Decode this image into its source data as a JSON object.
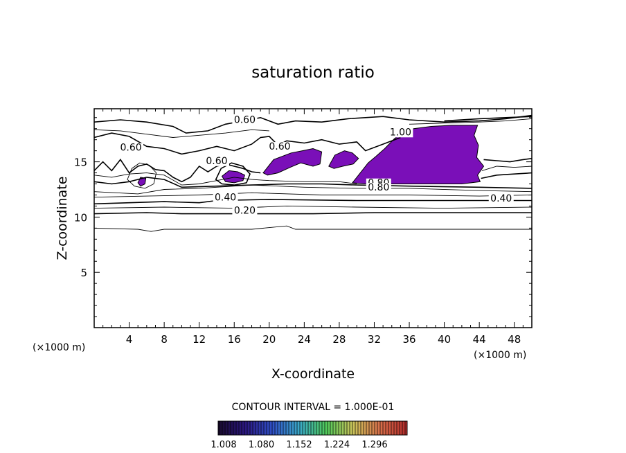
{
  "chart_data": {
    "type": "heatmap",
    "title": "saturation ratio",
    "xlabel": "X-coordinate",
    "ylabel": "Z-coordinate",
    "x_unit": "(×1000 m)",
    "y_unit": "(×1000 m)",
    "xlim": [
      0,
      50
    ],
    "ylim": [
      0,
      19.8
    ],
    "x_ticks": [
      4,
      8,
      12,
      16,
      20,
      24,
      28,
      32,
      36,
      40,
      44,
      48
    ],
    "y_ticks": [
      5,
      10,
      15
    ],
    "contour_interval_label": "CONTOUR INTERVAL = 1.000E-01",
    "colorbar_ticks": [
      "1.008",
      "1.080",
      "1.152",
      "1.224",
      "1.296"
    ],
    "colorbar_colors": [
      "#1a0a2e",
      "#2b1780",
      "#3050c8",
      "#3aa9c8",
      "#4fc95a",
      "#cbc35a",
      "#d96f4a",
      "#b32a2a"
    ],
    "fill_color": "#7a0fb8",
    "contour_labels": [
      {
        "text": "0.60",
        "x": 17.2,
        "y": 18.5
      },
      {
        "text": "0.60",
        "x": 4.2,
        "y": 16.0
      },
      {
        "text": "0.60",
        "x": 14.0,
        "y": 14.8
      },
      {
        "text": "0.60",
        "x": 21.2,
        "y": 16.1
      },
      {
        "text": "1.00",
        "x": 35.0,
        "y": 17.4
      },
      {
        "text": "0.80",
        "x": 32.5,
        "y": 12.8
      },
      {
        "text": "0.80",
        "x": 32.5,
        "y": 12.4
      },
      {
        "text": "0.40",
        "x": 15.0,
        "y": 11.5
      },
      {
        "text": "0.40",
        "x": 46.5,
        "y": 11.4
      },
      {
        "text": "0.20",
        "x": 17.2,
        "y": 10.3
      }
    ],
    "supersaturated_regions": [
      {
        "points": [
          [
            19.3,
            14.0
          ],
          [
            20.5,
            15.2
          ],
          [
            22.5,
            15.8
          ],
          [
            23.8,
            16.0
          ],
          [
            25.0,
            16.2
          ],
          [
            26.0,
            15.9
          ],
          [
            25.8,
            14.8
          ],
          [
            25.0,
            14.6
          ],
          [
            23.6,
            14.9
          ],
          [
            22.4,
            14.5
          ],
          [
            21.0,
            14.0
          ],
          [
            19.8,
            13.8
          ]
        ]
      },
      {
        "points": [
          [
            26.8,
            14.6
          ],
          [
            27.5,
            15.6
          ],
          [
            28.6,
            16.0
          ],
          [
            29.5,
            15.8
          ],
          [
            30.2,
            15.3
          ],
          [
            29.6,
            14.8
          ],
          [
            28.4,
            14.6
          ],
          [
            27.4,
            14.4
          ]
        ]
      },
      {
        "points": [
          [
            29.5,
            13.1
          ],
          [
            30.4,
            14.0
          ],
          [
            31.3,
            14.9
          ],
          [
            32.2,
            15.5
          ],
          [
            33.2,
            16.2
          ],
          [
            34.3,
            17.1
          ],
          [
            35.2,
            17.6
          ],
          [
            36.5,
            18.0
          ],
          [
            38.5,
            18.2
          ],
          [
            40.8,
            18.3
          ],
          [
            43.8,
            18.3
          ],
          [
            43.4,
            17.4
          ],
          [
            43.9,
            16.5
          ],
          [
            43.7,
            15.4
          ],
          [
            44.5,
            14.6
          ],
          [
            43.8,
            13.8
          ],
          [
            44.1,
            13.2
          ],
          [
            42.0,
            13.0
          ],
          [
            39.0,
            13.0
          ],
          [
            36.0,
            13.0
          ],
          [
            33.0,
            13.0
          ],
          [
            31.0,
            13.0
          ]
        ]
      },
      {
        "points": [
          [
            14.6,
            13.7
          ],
          [
            15.4,
            14.2
          ],
          [
            16.4,
            14.1
          ],
          [
            17.2,
            13.8
          ],
          [
            17.0,
            13.3
          ],
          [
            16.0,
            13.1
          ],
          [
            15.0,
            13.2
          ]
        ]
      },
      {
        "points": [
          [
            5.0,
            13.1
          ],
          [
            5.3,
            13.6
          ],
          [
            5.9,
            13.5
          ],
          [
            5.8,
            13.0
          ],
          [
            5.3,
            12.8
          ]
        ]
      }
    ],
    "contour_lines": [
      {
        "level": 0.1,
        "points": [
          [
            0,
            9.0
          ],
          [
            5,
            8.9
          ],
          [
            6.5,
            8.7
          ],
          [
            8,
            8.9
          ],
          [
            12,
            8.9
          ],
          [
            18,
            8.9
          ],
          [
            22,
            9.2
          ],
          [
            23,
            8.9
          ],
          [
            30,
            8.9
          ],
          [
            40,
            8.9
          ],
          [
            50,
            8.9
          ]
        ]
      },
      {
        "level": 0.2,
        "points": [
          [
            0,
            10.3
          ],
          [
            6,
            10.4
          ],
          [
            10,
            10.3
          ],
          [
            16,
            10.3
          ],
          [
            25,
            10.3
          ],
          [
            32,
            10.4
          ],
          [
            40,
            10.4
          ],
          [
            50,
            10.4
          ]
        ]
      },
      {
        "level": 0.3,
        "points": [
          [
            0,
            10.8
          ],
          [
            8,
            10.9
          ],
          [
            16,
            10.8
          ],
          [
            22,
            11.0
          ],
          [
            30,
            10.9
          ],
          [
            40,
            10.8
          ],
          [
            50,
            10.9
          ]
        ]
      },
      {
        "level": 0.4,
        "points": [
          [
            0,
            11.2
          ],
          [
            8,
            11.4
          ],
          [
            12,
            11.3
          ],
          [
            14,
            11.5
          ],
          [
            20,
            11.6
          ],
          [
            30,
            11.5
          ],
          [
            44,
            11.5
          ],
          [
            50,
            11.5
          ]
        ]
      },
      {
        "level": 0.5,
        "points": [
          [
            0,
            11.8
          ],
          [
            6,
            11.9
          ],
          [
            12,
            12.0
          ],
          [
            18,
            12.2
          ],
          [
            26,
            12.0
          ],
          [
            36,
            12.0
          ],
          [
            44,
            11.9
          ],
          [
            50,
            12.0
          ]
        ]
      },
      {
        "level": 0.7,
        "points": [
          [
            0,
            12.3
          ],
          [
            5,
            12.1
          ],
          [
            8,
            12.5
          ],
          [
            12,
            12.6
          ],
          [
            18,
            12.9
          ],
          [
            24,
            12.7
          ],
          [
            30,
            12.6
          ],
          [
            36,
            12.6
          ],
          [
            44,
            12.4
          ],
          [
            50,
            12.3
          ]
        ]
      },
      {
        "level": 0.8,
        "points": [
          [
            30,
            12.9
          ],
          [
            36,
            12.8
          ],
          [
            44,
            12.7
          ],
          [
            50,
            12.6
          ]
        ]
      },
      {
        "level": 0.6,
        "points": [
          [
            0,
            18.6
          ],
          [
            3,
            18.8
          ],
          [
            6,
            18.6
          ],
          [
            9,
            18.2
          ],
          [
            10.5,
            17.6
          ],
          [
            13,
            17.8
          ],
          [
            15,
            18.4
          ],
          [
            17,
            18.7
          ],
          [
            19,
            19.0
          ],
          [
            21,
            18.4
          ],
          [
            23,
            18.7
          ],
          [
            26,
            18.6
          ],
          [
            29,
            18.9
          ],
          [
            33,
            19.1
          ],
          [
            36,
            18.8
          ],
          [
            40,
            18.6
          ],
          [
            44,
            18.7
          ],
          [
            47,
            18.9
          ],
          [
            50,
            19.2
          ]
        ]
      },
      {
        "level": 0.6,
        "points": [
          [
            0,
            17.2
          ],
          [
            2,
            17.6
          ],
          [
            4,
            17.3
          ],
          [
            6,
            16.4
          ],
          [
            8,
            16.2
          ],
          [
            10,
            15.7
          ],
          [
            12,
            16.0
          ],
          [
            14,
            16.4
          ],
          [
            16,
            16.0
          ],
          [
            18,
            16.6
          ],
          [
            19,
            17.2
          ],
          [
            20,
            17.3
          ],
          [
            21,
            16.5
          ],
          [
            22,
            16.9
          ],
          [
            24,
            16.7
          ],
          [
            26,
            17.0
          ],
          [
            28,
            16.6
          ],
          [
            30,
            16.8
          ],
          [
            31,
            16.0
          ],
          [
            33,
            16.6
          ],
          [
            35,
            17.2
          ]
        ]
      },
      {
        "level": 0.5,
        "points": [
          [
            0,
            17.9
          ],
          [
            3,
            17.8
          ],
          [
            6,
            17.5
          ],
          [
            9,
            17.2
          ],
          [
            12,
            17.4
          ],
          [
            15,
            17.6
          ],
          [
            18,
            17.9
          ],
          [
            20,
            17.8
          ]
        ]
      },
      {
        "level": 0.6,
        "points": [
          [
            0,
            14.2
          ],
          [
            1,
            15.0
          ],
          [
            2,
            14.2
          ],
          [
            3,
            15.2
          ],
          [
            4,
            14.0
          ],
          [
            5,
            14.6
          ],
          [
            6,
            14.8
          ],
          [
            7,
            14.3
          ],
          [
            8,
            14.2
          ],
          [
            9,
            13.6
          ],
          [
            10,
            13.2
          ],
          [
            11,
            13.6
          ],
          [
            12,
            14.6
          ],
          [
            13,
            14.1
          ],
          [
            14,
            14.6
          ],
          [
            15,
            14.8
          ],
          [
            16,
            14.6
          ],
          [
            17,
            14.4
          ],
          [
            18,
            14.1
          ],
          [
            19,
            14.0
          ]
        ]
      },
      {
        "level": 0.7,
        "points": [
          [
            0,
            13.8
          ],
          [
            2,
            13.6
          ],
          [
            4,
            13.9
          ],
          [
            6,
            14.0
          ],
          [
            8,
            13.8
          ],
          [
            10,
            12.9
          ],
          [
            12,
            13.0
          ],
          [
            14,
            13.3
          ],
          [
            16,
            13.6
          ],
          [
            18,
            13.4
          ],
          [
            20,
            13.3
          ],
          [
            24,
            13.2
          ],
          [
            28,
            13.2
          ],
          [
            30,
            13.0
          ]
        ]
      },
      {
        "level": 0.8,
        "points": [
          [
            0,
            13.2
          ],
          [
            2,
            13.0
          ],
          [
            4,
            13.2
          ],
          [
            6,
            13.6
          ],
          [
            8,
            13.4
          ],
          [
            10,
            12.7
          ],
          [
            14,
            12.8
          ],
          [
            18,
            12.9
          ],
          [
            22,
            13.0
          ],
          [
            26,
            13.0
          ],
          [
            30,
            12.9
          ]
        ]
      },
      {
        "level": 0.9,
        "points": [
          [
            3.8,
            13.4
          ],
          [
            4.3,
            14.4
          ],
          [
            5.2,
            14.9
          ],
          [
            6.3,
            14.7
          ],
          [
            7.1,
            14.0
          ],
          [
            6.8,
            13.0
          ],
          [
            5.8,
            12.6
          ],
          [
            4.6,
            12.8
          ],
          [
            3.8,
            13.4
          ]
        ]
      },
      {
        "level": 0.8,
        "points": [
          [
            13.9,
            13.4
          ],
          [
            14.5,
            14.4
          ],
          [
            15.7,
            14.9
          ],
          [
            17.0,
            14.6
          ],
          [
            17.8,
            13.9
          ],
          [
            17.4,
            13.1
          ],
          [
            16.0,
            12.9
          ],
          [
            14.6,
            13.0
          ],
          [
            13.9,
            13.4
          ]
        ]
      },
      {
        "level": 0.6,
        "points": [
          [
            44.5,
            15.2
          ],
          [
            46.0,
            15.1
          ],
          [
            47.5,
            15.0
          ],
          [
            49,
            15.2
          ],
          [
            50,
            15.3
          ]
        ]
      },
      {
        "level": 0.7,
        "points": [
          [
            44.3,
            14.2
          ],
          [
            46.0,
            14.6
          ],
          [
            48,
            14.5
          ],
          [
            50,
            14.6
          ]
        ]
      },
      {
        "level": 0.8,
        "points": [
          [
            44.2,
            13.5
          ],
          [
            46.0,
            13.8
          ],
          [
            48,
            13.9
          ],
          [
            50,
            14.0
          ]
        ]
      },
      {
        "level": 0.9,
        "points": [
          [
            36,
            18.4
          ],
          [
            40,
            18.5
          ],
          [
            44,
            18.6
          ],
          [
            47,
            18.7
          ],
          [
            50,
            18.9
          ]
        ]
      },
      {
        "level": 0.8,
        "points": [
          [
            40,
            18.7
          ],
          [
            44,
            18.9
          ],
          [
            47,
            19.0
          ],
          [
            50,
            19.1
          ]
        ]
      }
    ]
  }
}
